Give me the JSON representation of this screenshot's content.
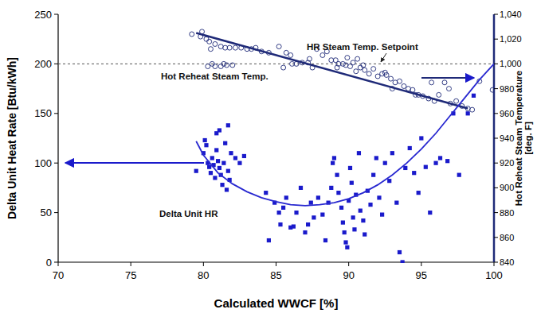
{
  "chart_data": {
    "type": "scatter",
    "x_label": "Calculated WWCF [%]",
    "y_label": "Delta Unit Heat Rate [Btu/kWh]",
    "y2_label": "Hot Reheat Steam Temperature [deg. F]",
    "xlim": [
      70,
      100
    ],
    "xticks": [
      70,
      75,
      80,
      85,
      90,
      95,
      100
    ],
    "ylim": [
      0,
      250
    ],
    "yticks": [
      0,
      50,
      100,
      150,
      200,
      250
    ],
    "y2lim": [
      840,
      1040
    ],
    "y2ticks": [
      840,
      860,
      880,
      900,
      920,
      940,
      960,
      980,
      {
        "value": 1000,
        "label": "1,000"
      },
      {
        "value": 1020,
        "label": "1,020"
      },
      {
        "value": 1040,
        "label": "1,040"
      }
    ],
    "grid": false,
    "series": [
      {
        "name": "Hot Reheat Steam Temp.",
        "type": "scatter",
        "marker": "circle-open",
        "axis": "y2",
        "color": "#1f2a78",
        "x": [
          79.2,
          79.8,
          79.9,
          80.2,
          80.4,
          80.5,
          80.8,
          81.2,
          81.5,
          81.8,
          82.2,
          82.6,
          83.0,
          83.3,
          83.6,
          80.3,
          80.8,
          81.2,
          81.6,
          82.0,
          80.6,
          81.4,
          84.0,
          84.5,
          85.2,
          85.5,
          85.7,
          86.0,
          86.1,
          86.4,
          86.8,
          87.2,
          87.3,
          87.5,
          87.8,
          88.2,
          88.5,
          88.8,
          89.1,
          89.2,
          89.3,
          89.6,
          89.8,
          89.9,
          90.1,
          90.3,
          90.5,
          90.6,
          90.8,
          91.0,
          91.1,
          91.4,
          91.7,
          92.0,
          92.3,
          92.5,
          92.6,
          92.9,
          93.0,
          93.2,
          93.5,
          93.8,
          94.1,
          94.4,
          94.6,
          94.8,
          95.1,
          95.5,
          95.7,
          95.9,
          96.2,
          96.6,
          96.9,
          97.0,
          97.4,
          97.8,
          98.2,
          98.5,
          99.0,
          99.9
        ],
        "values": [
          1024,
          1022,
          1026,
          1020,
          1018,
          1012,
          1016,
          1014,
          1013,
          1013,
          1013,
          1013,
          1012,
          1012,
          1013,
          998,
          998,
          998,
          999,
          999,
          1000,
          1000,
          1010,
          1009,
          1014,
          997,
          1009,
          1007,
          1000,
          1000,
          1001,
          1001,
          1004,
          997,
          1012,
          1007,
          1010,
          1003,
          1003,
          997,
          1000,
          1000,
          999,
          1005,
          998,
          1001,
          994,
          1004,
          997,
          999,
          995,
          992,
          996,
          990,
          992,
          993,
          991,
          988,
          980,
          985,
          986,
          982,
          980,
          979,
          975,
          975,
          974,
          972,
          985,
          970,
          975,
          985,
          980,
          968,
          970,
          966,
          964,
          963,
          986,
          979
        ]
      },
      {
        "type": "line",
        "line_style": "solid",
        "axis": "y2",
        "color": "#1f2a78",
        "x": [
          79.5,
          98.2
        ],
        "values": [
          1025,
          964
        ]
      },
      {
        "name": "Delta Unit HR",
        "type": "scatter",
        "marker": "square",
        "color": "#1a1acb",
        "x": [
          79.5,
          80.0,
          80.1,
          80.2,
          80.3,
          80.4,
          80.5,
          80.6,
          80.7,
          80.8,
          80.9,
          81.0,
          81.1,
          81.2,
          81.3,
          81.4,
          81.5,
          81.6,
          81.7,
          81.8,
          81.9,
          82.2,
          82.5,
          82.8,
          81.1,
          81.7,
          80.9,
          84.3,
          84.5,
          84.9,
          85.2,
          85.3,
          85.5,
          85.7,
          86.0,
          86.2,
          86.4,
          86.7,
          87.0,
          87.2,
          87.4,
          87.6,
          87.9,
          88.2,
          88.4,
          88.6,
          88.8,
          88.9,
          89.0,
          89.2,
          89.3,
          89.5,
          89.6,
          89.7,
          89.8,
          89.9,
          90.0,
          90.1,
          90.2,
          90.3,
          90.4,
          90.5,
          90.7,
          90.8,
          91.0,
          91.1,
          91.3,
          91.5,
          91.7,
          91.9,
          92.1,
          92.3,
          92.5,
          92.8,
          93.0,
          93.3,
          93.5,
          93.7,
          93.9,
          94.2,
          94.5,
          94.8,
          95.0,
          95.3,
          95.6,
          96.0,
          96.3,
          96.8,
          97.2,
          97.6,
          98.2,
          98.6
        ],
        "values": [
          92,
          110,
          123,
          118,
          100,
          96,
          90,
          105,
          98,
          85,
          113,
          102,
          95,
          88,
          78,
          100,
          120,
          73,
          92,
          83,
          110,
          105,
          100,
          107,
          133,
          138,
          130,
          70,
          22,
          60,
          50,
          38,
          55,
          65,
          35,
          36,
          50,
          75,
          30,
          38,
          60,
          45,
          65,
          48,
          22,
          60,
          75,
          100,
          105,
          88,
          70,
          55,
          40,
          30,
          20,
          15,
          62,
          95,
          80,
          45,
          33,
          68,
          110,
          52,
          42,
          28,
          72,
          58,
          88,
          105,
          65,
          48,
          100,
          82,
          110,
          60,
          10,
          0,
          95,
          115,
          90,
          70,
          125,
          96,
          50,
          100,
          105,
          102,
          150,
          88,
          150,
          168
        ]
      },
      {
        "type": "line",
        "line_style": "solid",
        "color": "#2828d0",
        "x": [
          79.5,
          80,
          81,
          82,
          83,
          84,
          85,
          86,
          87,
          88,
          89,
          90,
          91,
          92,
          93,
          94,
          95,
          96,
          97,
          98,
          99,
          100
        ],
        "values": [
          122,
          108,
          90,
          79,
          71,
          65,
          61,
          58,
          57,
          58,
          60,
          64,
          70,
          78,
          88,
          100,
          114,
          130,
          148,
          166,
          184,
          200
        ]
      },
      {
        "name": "HR Steam Temp. Setpoint",
        "type": "line",
        "line_style": "dashed",
        "axis": "y2",
        "color": "#555555",
        "x": [
          70,
          100
        ],
        "values": [
          1000,
          1000
        ]
      }
    ]
  }
}
